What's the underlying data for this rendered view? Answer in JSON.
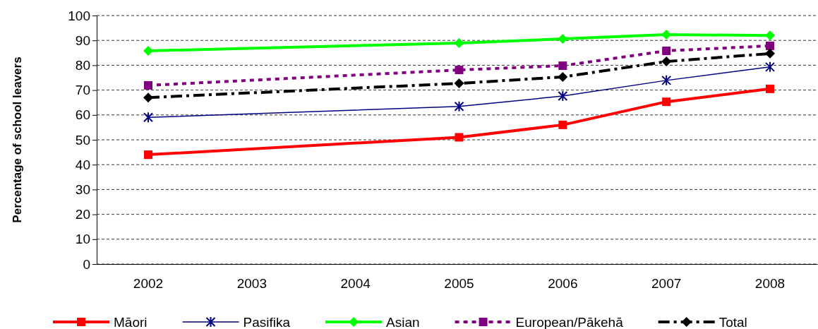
{
  "chart_data": {
    "type": "line",
    "ylabel": "Percentage of school leavers",
    "categories": [
      "2002",
      "2003",
      "2004",
      "2005",
      "2006",
      "2007",
      "2008"
    ],
    "series": [
      {
        "name": "Māori",
        "color": "#ff0000",
        "marker": "square",
        "line_style": "solid",
        "values": [
          44,
          null,
          null,
          51,
          56,
          65.3,
          70.5
        ]
      },
      {
        "name": "Pasifika",
        "color": "#000080",
        "marker": "cross",
        "line_style": "solid",
        "values": [
          59,
          null,
          null,
          63.4,
          67.6,
          73.9,
          79.3
        ]
      },
      {
        "name": "Asian",
        "color": "#00ff00",
        "marker": "diamond",
        "line_style": "solid",
        "values": [
          85.8,
          null,
          null,
          88.9,
          90.6,
          92.3,
          92
        ]
      },
      {
        "name": "European/Pākehā",
        "color": "#800080",
        "marker": "square",
        "line_style": "dotted",
        "values": [
          71.9,
          null,
          null,
          78.1,
          79.8,
          85.8,
          87.8
        ]
      },
      {
        "name": "Total",
        "color": "#000000",
        "marker": "diamond",
        "line_style": "dashed",
        "values": [
          67,
          null,
          null,
          72.7,
          75.3,
          81.5,
          84.7
        ]
      }
    ],
    "ylim": [
      0,
      100
    ],
    "yticks": [
      0,
      10,
      20,
      30,
      40,
      50,
      60,
      70,
      80,
      90,
      100
    ],
    "grid": "y",
    "legend": "bottom"
  }
}
